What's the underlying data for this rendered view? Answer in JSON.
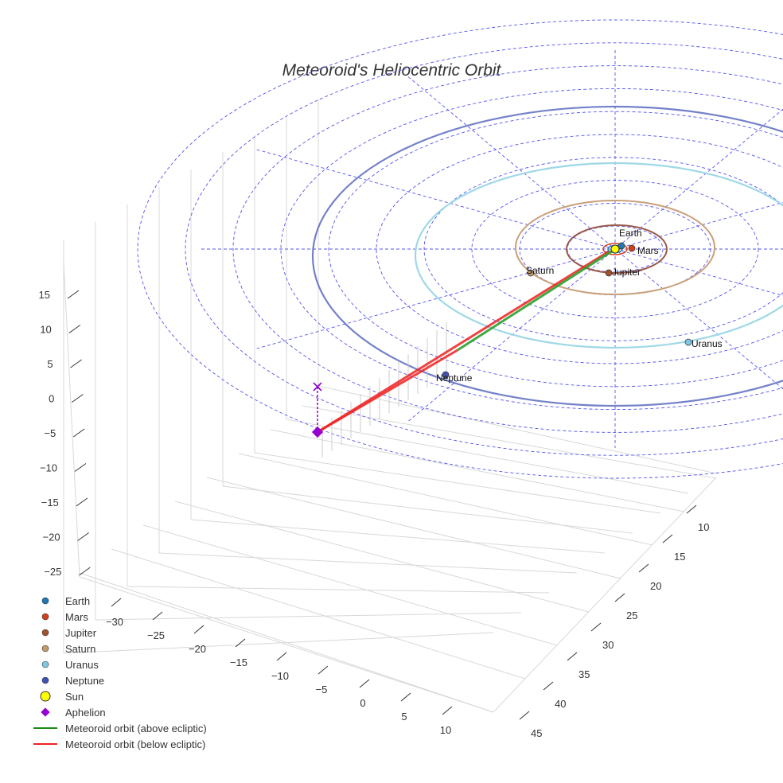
{
  "chart_data": {
    "type": "scatter3d",
    "title": "Meteoroid's Heliocentric Orbit",
    "z_ticks": [
      "15",
      "10",
      "5",
      "0",
      "−5",
      "−10",
      "−15",
      "−20",
      "−25"
    ],
    "x_ticks": [
      "−30",
      "−25",
      "−20",
      "−15",
      "−10",
      "−5",
      "0",
      "5",
      "10"
    ],
    "y_ticks": [
      "10",
      "15",
      "20",
      "25",
      "30",
      "35",
      "40",
      "45"
    ],
    "planets": [
      {
        "name": "Earth",
        "color": "#1f77b4"
      },
      {
        "name": "Mars",
        "color": "#d2401a"
      },
      {
        "name": "Jupiter",
        "color": "#a0522d"
      },
      {
        "name": "Saturn",
        "color": "#c39a6b"
      },
      {
        "name": "Uranus",
        "color": "#7ec8e3"
      },
      {
        "name": "Neptune",
        "color": "#3f51b5"
      }
    ],
    "legend": [
      "Earth",
      "Mars",
      "Jupiter",
      "Saturn",
      "Uranus",
      "Neptune",
      "Sun",
      "Aphelion",
      "Meteoroid orbit (above ecliptic)",
      "Meteoroid orbit (below ecliptic)"
    ],
    "legend_placement": "bottom-left",
    "colors": {
      "sun": "#ffff00",
      "aphelion": "#9400d3",
      "above": "#2ca02c",
      "below": "#ee2222"
    }
  }
}
